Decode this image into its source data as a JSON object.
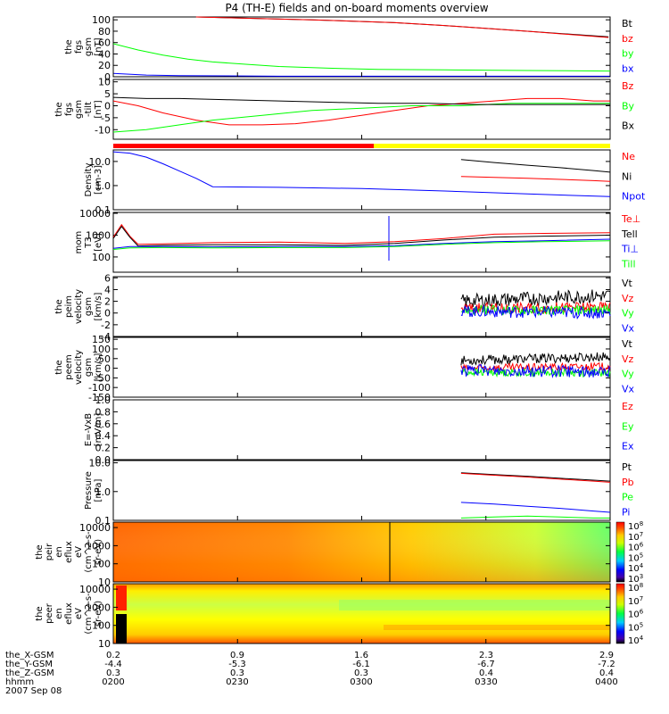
{
  "title": "P4 (TH-E) fields and on-board moments overview",
  "date_label": "2007 Sep 08",
  "orbit": {
    "row_labels": [
      "the_X-GSM",
      "the_Y-GSM",
      "the_Z-GSM",
      "hhmm"
    ],
    "columns": [
      {
        "vals": [
          "0.2",
          "-4.4",
          "0.3",
          "0200"
        ]
      },
      {
        "vals": [
          "0.9",
          "-5.3",
          "0.3",
          "0230"
        ]
      },
      {
        "vals": [
          "1.6",
          "-6.1",
          "0.3",
          "0300"
        ]
      },
      {
        "vals": [
          "2.3",
          "-6.7",
          "0.4",
          "0330"
        ]
      },
      {
        "vals": [
          "2.9",
          "-7.2",
          "0.4",
          "0400"
        ]
      }
    ]
  },
  "colors": {
    "black": "#000000",
    "red": "#ff0000",
    "green": "#00ff00",
    "blue": "#0000ff",
    "yellow": "#ffff00"
  },
  "chart_data": [
    {
      "type": "line",
      "ylabel": [
        "the",
        "fgs",
        "gsm",
        "[nT]"
      ],
      "yticks": [
        "0",
        "20",
        "40",
        "60",
        "80",
        "100"
      ],
      "ylim": [
        0,
        105
      ],
      "scale": "linear",
      "series": [
        {
          "name": "Bt",
          "color": "#000000",
          "x": [
            0.5,
            1.2,
            1.7,
            2.0,
            2.5,
            2.99
          ],
          "values": [
            105,
            100,
            95,
            90,
            80,
            70
          ]
        },
        {
          "name": "bz",
          "color": "#ff0000",
          "x": [
            0.5,
            1.2,
            1.7,
            2.0,
            2.5,
            2.99
          ],
          "values": [
            105,
            100,
            95,
            90,
            80,
            69
          ]
        },
        {
          "name": "by",
          "color": "#00ff00",
          "x": [
            0,
            0.15,
            0.3,
            0.45,
            0.6,
            0.8,
            1.0,
            1.3,
            1.6,
            2.0,
            2.5,
            3.0
          ],
          "values": [
            58,
            47,
            38,
            31,
            26,
            22,
            18,
            15,
            13,
            12,
            11,
            10
          ]
        },
        {
          "name": "bx",
          "color": "#0000ff",
          "x": [
            0,
            0.2,
            0.4,
            1.0,
            2.0,
            3.0
          ],
          "values": [
            6,
            3,
            2,
            1,
            1,
            1
          ]
        }
      ]
    },
    {
      "type": "line",
      "ylabel": [
        "the",
        "fgs",
        "gsm",
        "-tilt",
        "[nT]"
      ],
      "yticks": [
        "-10",
        "-5",
        "0",
        "5",
        "10"
      ],
      "ylim": [
        -14,
        11
      ],
      "scale": "linear",
      "series": [
        {
          "name": "Bz",
          "color": "#ff0000",
          "x": [
            0,
            0.15,
            0.3,
            0.5,
            0.7,
            0.9,
            1.1,
            1.3,
            1.5,
            1.7,
            1.9,
            2.1,
            2.3,
            2.5,
            2.7,
            2.9,
            3.0
          ],
          "values": [
            2,
            0,
            -3,
            -6,
            -8,
            -8,
            -7.5,
            -6,
            -4,
            -2,
            0,
            1,
            2,
            3,
            3,
            2,
            2
          ]
        },
        {
          "name": "By",
          "color": "#00ff00",
          "x": [
            0,
            0.2,
            0.4,
            0.6,
            0.9,
            1.2,
            1.5,
            1.8,
            2.1,
            2.4,
            2.7,
            3.0
          ],
          "values": [
            -11,
            -10,
            -8,
            -6,
            -4,
            -2,
            -1,
            0,
            0,
            1,
            1,
            1
          ]
        },
        {
          "name": "Bx",
          "color": "#000000",
          "x": [
            0,
            0.2,
            0.4,
            0.7,
            1.0,
            1.3,
            1.6,
            1.9,
            2.2,
            2.5,
            2.8,
            3.0
          ],
          "values": [
            3.5,
            3,
            3,
            2.5,
            2,
            1.5,
            1,
            1,
            0.5,
            0.5,
            0.5,
            0.5
          ]
        }
      ]
    },
    {
      "type": "line",
      "ylabel": [
        "Density",
        "[cm-3]"
      ],
      "yticks": [
        "0.1",
        "1.0",
        "10.0"
      ],
      "ylim": [
        0.1,
        30
      ],
      "scale": "log",
      "series": [
        {
          "name": "Ne",
          "color": "#ff0000",
          "x": [
            2.1,
            2.3,
            2.5,
            2.7,
            2.9,
            3.0
          ],
          "values": [
            2.4,
            2.2,
            2.0,
            1.8,
            1.6,
            1.5
          ]
        },
        {
          "name": "Ni",
          "color": "#000000",
          "x": [
            2.1,
            2.3,
            2.5,
            2.7,
            2.9,
            3.0
          ],
          "values": [
            12,
            9,
            7,
            5.5,
            4.2,
            3.6
          ]
        },
        {
          "name": "Npot",
          "color": "#0000ff",
          "x": [
            0,
            0.1,
            0.2,
            0.3,
            0.4,
            0.5,
            0.6,
            1.0,
            1.5,
            2.0,
            2.5,
            3.0
          ],
          "values": [
            25,
            22,
            15,
            8,
            4,
            2,
            0.9,
            0.85,
            0.75,
            0.6,
            0.45,
            0.35
          ]
        }
      ]
    },
    {
      "type": "line",
      "ylabel": [
        "mom",
        "T3",
        "[eV]"
      ],
      "yticks": [
        "100",
        "1000",
        "10000"
      ],
      "ylim": [
        20,
        11000
      ],
      "scale": "log",
      "series": [
        {
          "name": "Te⊥",
          "color": "#ff0000",
          "x": [
            0,
            0.05,
            0.1,
            0.15,
            0.3,
            0.6,
            1.0,
            1.4,
            1.7,
            2.0,
            2.3,
            2.6,
            3.0
          ],
          "values": [
            800,
            3000,
            900,
            380,
            400,
            450,
            480,
            420,
            500,
            700,
            1100,
            1200,
            1300
          ]
        },
        {
          "name": "Tell",
          "color": "#000000",
          "x": [
            0,
            0.05,
            0.1,
            0.15,
            0.3,
            0.6,
            1.0,
            1.4,
            1.7,
            2.0,
            2.3,
            2.6,
            3.0
          ],
          "values": [
            700,
            2500,
            800,
            320,
            340,
            360,
            360,
            340,
            420,
            600,
            800,
            900,
            1000
          ]
        },
        {
          "name": "Ti⊥",
          "color": "#0000ff",
          "x": [
            0,
            0.1,
            0.3,
            0.6,
            1.0,
            1.4,
            1.7,
            2.0,
            2.3,
            2.6,
            3.0
          ],
          "values": [
            250,
            300,
            300,
            290,
            300,
            300,
            330,
            420,
            500,
            550,
            650
          ]
        },
        {
          "name": "Till",
          "color": "#00ff00",
          "x": [
            0,
            0.1,
            0.3,
            0.6,
            1.0,
            1.4,
            1.7,
            2.0,
            2.3,
            2.6,
            3.0
          ],
          "values": [
            220,
            260,
            270,
            260,
            270,
            270,
            300,
            380,
            450,
            500,
            550
          ]
        }
      ]
    },
    {
      "type": "line",
      "ylabel": [
        "the",
        "peim",
        "velocity",
        "gsm",
        "[km/s]"
      ],
      "yticks": [
        "-4",
        "-2",
        "0",
        "2",
        "4",
        "6"
      ],
      "ylim": [
        -4,
        6.2
      ],
      "scale": "linear",
      "series": [
        {
          "name": "Vt",
          "color": "#000000",
          "x": [
            2.1,
            3.0
          ],
          "values": [
            2,
            3
          ],
          "noise": 1.2
        },
        {
          "name": "Vz",
          "color": "#ff0000",
          "x": [
            2.1,
            3.0
          ],
          "values": [
            0.8,
            1
          ],
          "noise": 0.9
        },
        {
          "name": "Vy",
          "color": "#00ff00",
          "x": [
            2.1,
            3.0
          ],
          "values": [
            0.5,
            0.5
          ],
          "noise": 0.8
        },
        {
          "name": "Vx",
          "color": "#0000ff",
          "x": [
            2.1,
            3.0
          ],
          "values": [
            0.3,
            0
          ],
          "noise": 1.0
        }
      ]
    },
    {
      "type": "line",
      "ylabel": [
        "the",
        "peem",
        "velocity",
        "gsm",
        "[km/s]"
      ],
      "yticks": [
        "-150",
        "-100",
        "-50",
        "0",
        "50",
        "100",
        "150"
      ],
      "ylim": [
        -150,
        160
      ],
      "scale": "linear",
      "series": [
        {
          "name": "Vt",
          "color": "#000000",
          "x": [
            2.1,
            3.0
          ],
          "values": [
            40,
            60
          ],
          "noise": 25
        },
        {
          "name": "Vz",
          "color": "#ff0000",
          "x": [
            2.1,
            3.0
          ],
          "values": [
            0,
            10
          ],
          "noise": 20
        },
        {
          "name": "Vy",
          "color": "#00ff00",
          "x": [
            2.1,
            3.0
          ],
          "values": [
            -20,
            -25
          ],
          "noise": 20
        },
        {
          "name": "Vx",
          "color": "#0000ff",
          "x": [
            2.1,
            3.0
          ],
          "values": [
            -10,
            -20
          ],
          "noise": 30
        }
      ]
    },
    {
      "type": "line",
      "ylabel": [
        "E=-VxB",
        "[mV/m]"
      ],
      "yticks": [
        "0.0",
        "0.2",
        "0.4",
        "0.6",
        "0.8",
        "1.0"
      ],
      "ylim": [
        0,
        1
      ],
      "scale": "linear",
      "series": [
        {
          "name": "Ez",
          "color": "#ff0000",
          "x": [],
          "values": []
        },
        {
          "name": "Ey",
          "color": "#00ff00",
          "x": [],
          "values": []
        },
        {
          "name": "Ex",
          "color": "#0000ff",
          "x": [],
          "values": []
        }
      ]
    },
    {
      "type": "line",
      "ylabel": [
        "Pressure",
        "[nPa]"
      ],
      "yticks": [
        "0.1",
        "1.0",
        "10.0"
      ],
      "ylim": [
        0.1,
        12
      ],
      "scale": "log",
      "series": [
        {
          "name": "Pt",
          "color": "#000000",
          "x": [
            2.1,
            2.3,
            2.5,
            2.7,
            2.9,
            3.0
          ],
          "values": [
            4.5,
            3.9,
            3.4,
            2.9,
            2.5,
            2.3
          ]
        },
        {
          "name": "Pb",
          "color": "#ff0000",
          "x": [
            2.1,
            2.3,
            2.5,
            2.7,
            2.9,
            3.0
          ],
          "values": [
            4.3,
            3.7,
            3.2,
            2.7,
            2.3,
            2.1
          ]
        },
        {
          "name": "Pe",
          "color": "#00ff00",
          "x": [
            2.1,
            2.3,
            2.5,
            2.7,
            2.9,
            3.0
          ],
          "values": [
            0.12,
            0.13,
            0.14,
            0.13,
            0.12,
            0.12
          ]
        },
        {
          "name": "Pi",
          "color": "#0000ff",
          "x": [
            2.1,
            2.3,
            2.5,
            2.7,
            2.9,
            3.0
          ],
          "values": [
            0.42,
            0.37,
            0.31,
            0.26,
            0.21,
            0.19
          ]
        }
      ]
    },
    {
      "type": "heatmap",
      "ylabel": [
        "the",
        "peir",
        "en",
        "eflux",
        "eV",
        "(cm^2-s-",
        "sr-eV)"
      ],
      "yticks": [
        "10",
        "100",
        "1000",
        "10000"
      ],
      "colorbar_ticks": [
        "10^3",
        "10^4",
        "10^5",
        "10^6",
        "10^7",
        "10^8"
      ]
    },
    {
      "type": "heatmap",
      "ylabel": [
        "the",
        "peer",
        "en",
        "eflux",
        "eV",
        "(cm^2-s-",
        "sr-eV)"
      ],
      "yticks": [
        "10",
        "100",
        "1000",
        "10000"
      ],
      "colorbar_ticks": [
        "10^4",
        "10^5",
        "10^6",
        "10^7",
        "10^8"
      ]
    }
  ]
}
